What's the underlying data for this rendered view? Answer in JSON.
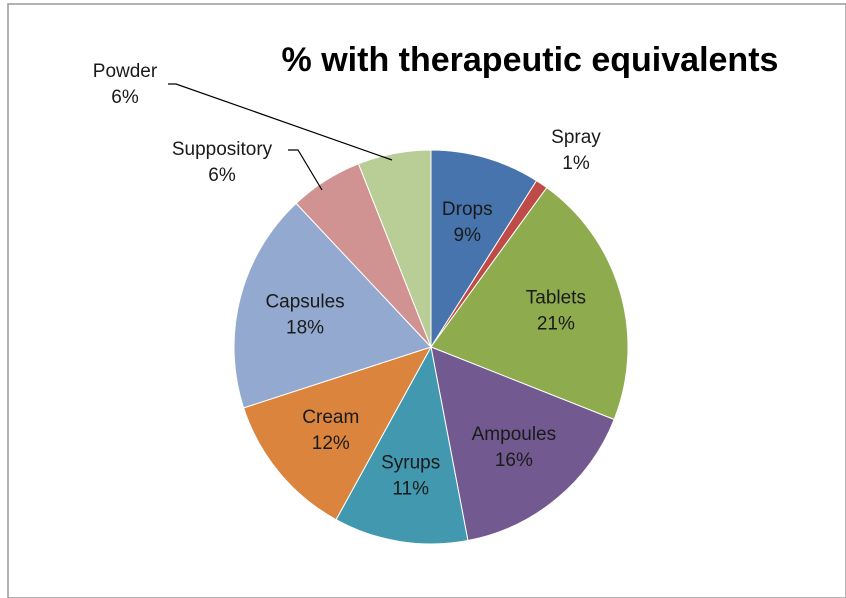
{
  "chart_data": {
    "type": "pie",
    "title": "% with therapeutic equivalents",
    "categories": [
      "Drops",
      "Spray",
      "Tablets",
      "Ampoules",
      "Syrups",
      "Cream",
      "Capsules",
      "Suppository",
      "Powder"
    ],
    "values": [
      9,
      1,
      21,
      16,
      11,
      12,
      18,
      6,
      6
    ],
    "value_labels": [
      "9%",
      "1%",
      "21%",
      "16%",
      "11%",
      "12%",
      "18%",
      "6%",
      "6%"
    ],
    "colors": [
      "#4774ac",
      "#be4b48",
      "#8eab4e",
      "#725990",
      "#4198af",
      "#db843d",
      "#93a9d0",
      "#d09392",
      "#b9cd96"
    ]
  }
}
